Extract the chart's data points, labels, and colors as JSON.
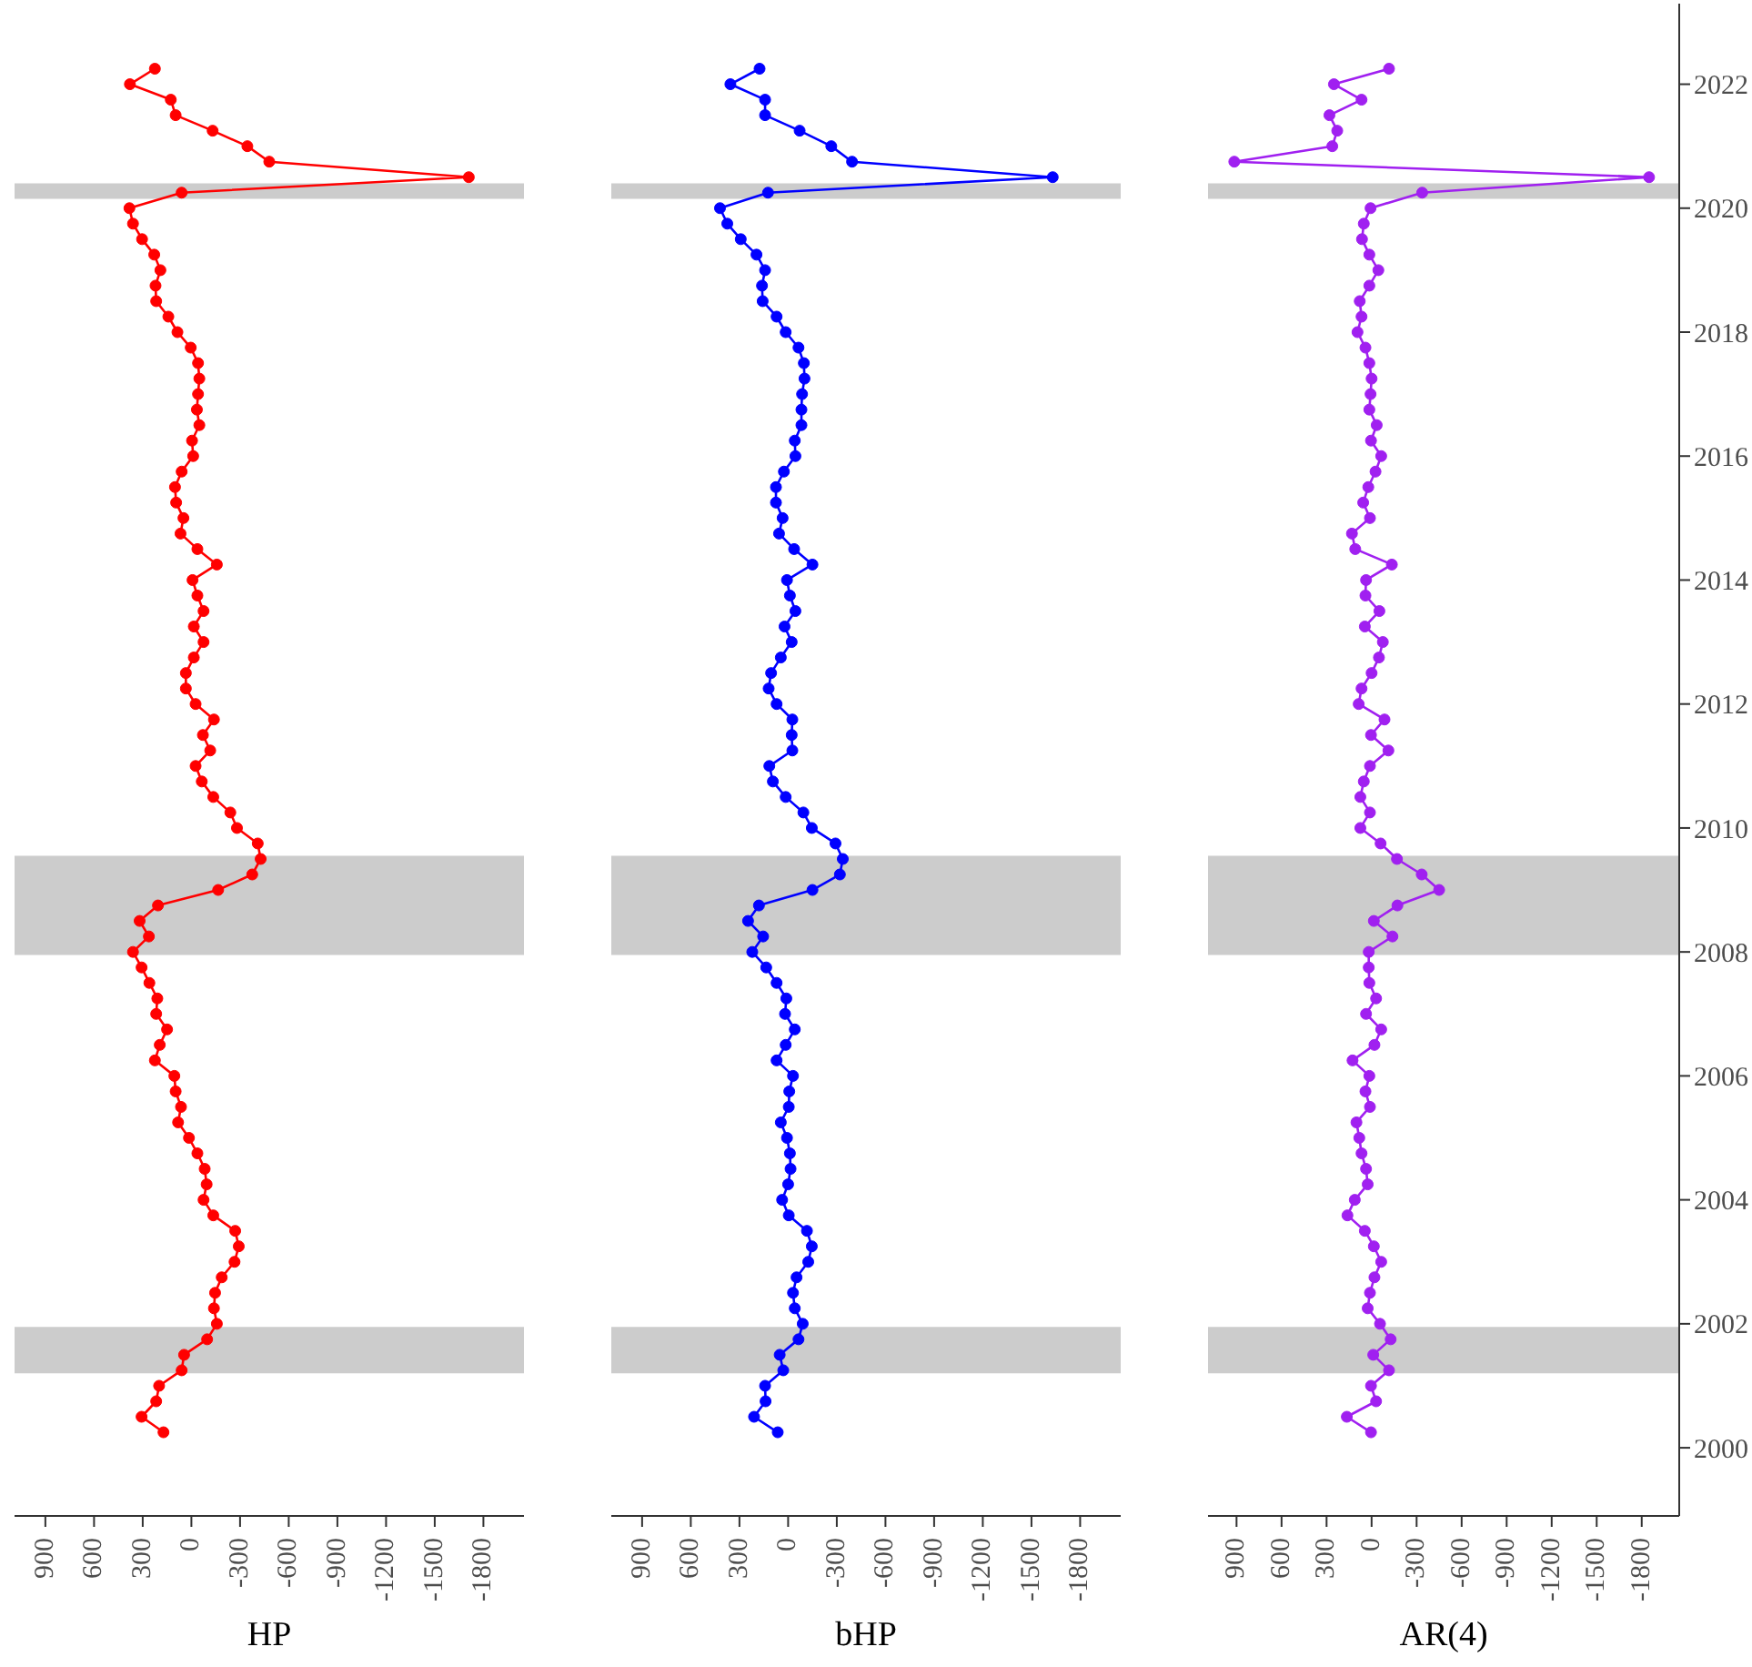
{
  "chart_data": [
    {
      "type": "line",
      "xlabel": "HP",
      "xlim": [
        1090,
        -2050
      ],
      "ylim": [
        1998.9,
        2023.3
      ],
      "xticks": [
        900,
        600,
        300,
        0,
        -300,
        -600,
        -900,
        -1200,
        -1500,
        -1800
      ],
      "yticks": [
        2000,
        2002,
        2004,
        2006,
        2008,
        2010,
        2012,
        2014,
        2016,
        2018,
        2020,
        2022
      ],
      "tick_labels": "x",
      "marker": "circle",
      "line_style": "solid",
      "grid": false,
      "legend": false,
      "bands": [
        {
          "axis": "y",
          "from": 2001.2,
          "to": 2001.95,
          "color": "#cccccc"
        },
        {
          "axis": "y",
          "from": 2007.95,
          "to": 2009.55,
          "color": "#cccccc"
        },
        {
          "axis": "y",
          "from": 2020.15,
          "to": 2020.4,
          "color": "#cccccc"
        }
      ],
      "series": [
        {
          "color": "#ff0000",
          "x": [
            172,
            307,
            217,
            199,
            60,
            45,
            -97,
            -157,
            -139,
            -146,
            -187,
            -266,
            -292,
            -270,
            -135,
            -75,
            -94,
            -82,
            -37,
            15,
            82,
            64,
            97,
            105,
            225,
            195,
            150,
            217,
            210,
            259,
            307,
            360,
            262,
            319,
            206,
            -165,
            -375,
            -427,
            -409,
            -281,
            -240,
            -135,
            -64,
            -26,
            -116,
            -71,
            -139,
            -26,
            34,
            34,
            -15,
            -75,
            -15,
            -75,
            -37,
            -7,
            -157,
            -37,
            67,
            49,
            94,
            101,
            60,
            -11,
            -4,
            -49,
            -34,
            -41,
            -49,
            -41,
            4,
            86,
            142,
            217,
            221,
            191,
            229,
            304,
            360,
            382,
            60,
            -1710,
            -480,
            -345,
            -131,
            97,
            127,
            379,
            225
          ],
          "values": [
            2000.25,
            2000.5,
            2000.75,
            2001,
            2001.25,
            2001.5,
            2001.75,
            2002,
            2002.25,
            2002.5,
            2002.75,
            2003,
            2003.25,
            2003.5,
            2003.75,
            2004,
            2004.25,
            2004.5,
            2004.75,
            2005,
            2005.25,
            2005.5,
            2005.75,
            2006,
            2006.25,
            2006.5,
            2006.75,
            2007,
            2007.25,
            2007.5,
            2007.75,
            2008,
            2008.25,
            2008.5,
            2008.75,
            2009,
            2009.25,
            2009.5,
            2009.75,
            2010,
            2010.25,
            2010.5,
            2010.75,
            2011,
            2011.25,
            2011.5,
            2011.75,
            2012,
            2012.25,
            2012.5,
            2012.75,
            2013,
            2013.25,
            2013.5,
            2013.75,
            2014,
            2014.25,
            2014.5,
            2014.75,
            2015,
            2015.25,
            2015.5,
            2015.75,
            2016,
            2016.25,
            2016.5,
            2016.75,
            2017,
            2017.25,
            2017.5,
            2017.75,
            2018,
            2018.25,
            2018.5,
            2018.75,
            2019,
            2019.25,
            2019.5,
            2019.75,
            2020,
            2020.25,
            2020.5,
            2020.75,
            2021,
            2021.25,
            2021.5,
            2021.75,
            2022,
            2022.25
          ]
        }
      ]
    },
    {
      "type": "line",
      "xlabel": "bHP",
      "xlim": [
        1090,
        -2050
      ],
      "ylim": [
        1998.9,
        2023.3
      ],
      "xticks": [
        900,
        600,
        300,
        0,
        -300,
        -600,
        -900,
        -1200,
        -1500,
        -1800
      ],
      "yticks": [
        2000,
        2002,
        2004,
        2006,
        2008,
        2010,
        2012,
        2014,
        2016,
        2018,
        2020,
        2022
      ],
      "tick_labels": "x",
      "marker": "circle",
      "line_style": "solid",
      "grid": false,
      "legend": false,
      "bands": [
        {
          "axis": "y",
          "from": 2001.2,
          "to": 2001.95,
          "color": "#cccccc"
        },
        {
          "axis": "y",
          "from": 2007.95,
          "to": 2009.55,
          "color": "#cccccc"
        },
        {
          "axis": "y",
          "from": 2020.15,
          "to": 2020.4,
          "color": "#cccccc"
        }
      ],
      "series": [
        {
          "color": "#0000ff",
          "x": [
            64,
            210,
            139,
            142,
            30,
            52,
            -64,
            -90,
            -41,
            -30,
            -52,
            -124,
            -146,
            -116,
            -4,
            37,
            0,
            -15,
            -11,
            7,
            45,
            -4,
            -7,
            -30,
            71,
            15,
            -41,
            19,
            11,
            71,
            135,
            221,
            154,
            247,
            180,
            -150,
            -319,
            -337,
            -292,
            -146,
            -94,
            15,
            94,
            116,
            -26,
            -22,
            -26,
            71,
            120,
            105,
            45,
            -22,
            22,
            -45,
            -11,
            7,
            -150,
            -37,
            56,
            34,
            75,
            75,
            26,
            -45,
            -41,
            -82,
            -82,
            -86,
            -101,
            -97,
            -64,
            15,
            71,
            157,
            161,
            142,
            195,
            292,
            375,
            420,
            124,
            -1631,
            -394,
            -266,
            -71,
            142,
            142,
            356,
            176
          ],
          "values": [
            2000.25,
            2000.5,
            2000.75,
            2001,
            2001.25,
            2001.5,
            2001.75,
            2002,
            2002.25,
            2002.5,
            2002.75,
            2003,
            2003.25,
            2003.5,
            2003.75,
            2004,
            2004.25,
            2004.5,
            2004.75,
            2005,
            2005.25,
            2005.5,
            2005.75,
            2006,
            2006.25,
            2006.5,
            2006.75,
            2007,
            2007.25,
            2007.5,
            2007.75,
            2008,
            2008.25,
            2008.5,
            2008.75,
            2009,
            2009.25,
            2009.5,
            2009.75,
            2010,
            2010.25,
            2010.5,
            2010.75,
            2011,
            2011.25,
            2011.5,
            2011.75,
            2012,
            2012.25,
            2012.5,
            2012.75,
            2013,
            2013.25,
            2013.5,
            2013.75,
            2014,
            2014.25,
            2014.5,
            2014.75,
            2015,
            2015.25,
            2015.5,
            2015.75,
            2016,
            2016.25,
            2016.5,
            2016.75,
            2017,
            2017.25,
            2017.5,
            2017.75,
            2018,
            2018.25,
            2018.5,
            2018.75,
            2019,
            2019.25,
            2019.5,
            2019.75,
            2020,
            2020.25,
            2020.5,
            2020.75,
            2021,
            2021.25,
            2021.5,
            2021.75,
            2022,
            2022.25
          ]
        }
      ]
    },
    {
      "type": "line",
      "xlabel": "AR(4)",
      "xlim": [
        1090,
        -2050
      ],
      "ylim": [
        1998.9,
        2023.3
      ],
      "xticks": [
        900,
        600,
        300,
        0,
        -300,
        -600,
        -900,
        -1200,
        -1500,
        -1800
      ],
      "yticks": [
        2000,
        2002,
        2004,
        2006,
        2008,
        2010,
        2012,
        2014,
        2016,
        2018,
        2020,
        2022
      ],
      "marker": "circle",
      "line_style": "solid",
      "grid": false,
      "legend": false,
      "bands": [
        {
          "axis": "y",
          "from": 2001.2,
          "to": 2001.95,
          "color": "#cccccc"
        },
        {
          "axis": "y",
          "from": 2007.95,
          "to": 2009.55,
          "color": "#cccccc"
        },
        {
          "axis": "y",
          "from": 2020.15,
          "to": 2020.4,
          "color": "#cccccc"
        }
      ],
      "series": [
        {
          "color": "#a020f0",
          "x": [
            4,
            165,
            -30,
            4,
            -116,
            -11,
            -127,
            -56,
            26,
            11,
            -19,
            -64,
            -15,
            45,
            161,
            112,
            26,
            37,
            67,
            82,
            101,
            11,
            41,
            15,
            127,
            -19,
            -64,
            37,
            -30,
            15,
            19,
            19,
            -139,
            -15,
            -172,
            -450,
            -334,
            -169,
            -60,
            75,
            11,
            75,
            52,
            11,
            -112,
            4,
            -86,
            86,
            67,
            0,
            -49,
            -75,
            45,
            -52,
            41,
            37,
            -135,
            109,
            131,
            11,
            56,
            22,
            -26,
            -64,
            4,
            -34,
            15,
            7,
            0,
            15,
            41,
            94,
            67,
            79,
            15,
            -45,
            15,
            64,
            52,
            7,
            -337,
            -1849,
            915,
            262,
            229,
            281,
            67,
            251,
            -116
          ],
          "values": [
            2000.25,
            2000.5,
            2000.75,
            2001,
            2001.25,
            2001.5,
            2001.75,
            2002,
            2002.25,
            2002.5,
            2002.75,
            2003,
            2003.25,
            2003.5,
            2003.75,
            2004,
            2004.25,
            2004.5,
            2004.75,
            2005,
            2005.25,
            2005.5,
            2005.75,
            2006,
            2006.25,
            2006.5,
            2006.75,
            2007,
            2007.25,
            2007.5,
            2007.75,
            2008,
            2008.25,
            2008.5,
            2008.75,
            2009,
            2009.25,
            2009.5,
            2009.75,
            2010,
            2010.25,
            2010.5,
            2010.75,
            2011,
            2011.25,
            2011.5,
            2011.75,
            2012,
            2012.25,
            2012.5,
            2012.75,
            2013,
            2013.25,
            2013.5,
            2013.75,
            2014,
            2014.25,
            2014.5,
            2014.75,
            2015,
            2015.25,
            2015.5,
            2015.75,
            2016,
            2016.25,
            2016.5,
            2016.75,
            2017,
            2017.25,
            2017.5,
            2017.75,
            2018,
            2018.25,
            2018.5,
            2018.75,
            2019,
            2019.25,
            2019.5,
            2019.75,
            2020,
            2020.25,
            2020.5,
            2020.75,
            2021,
            2021.25,
            2021.5,
            2021.75,
            2022,
            2022.25
          ]
        }
      ]
    }
  ]
}
